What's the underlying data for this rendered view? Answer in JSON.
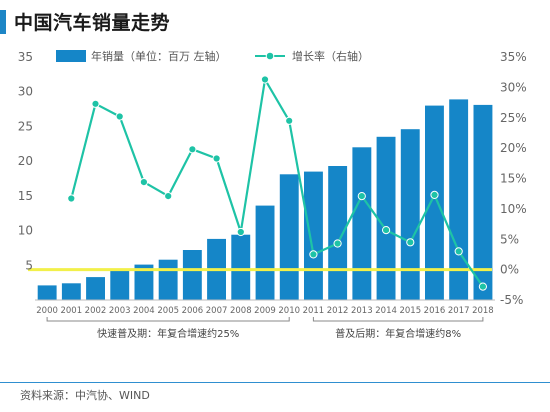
{
  "title": "中国汽车销量走势",
  "source": "资料来源：中汽协、WIND",
  "colors": {
    "bar": "#1586c8",
    "line": "#1ec3a6",
    "marker_fill": "#1ec3a6",
    "marker_stroke": "#ffffff",
    "highlight_line": "#f2f04a",
    "accent": "#1d86c6",
    "axis_text": "#666666",
    "bracket": "#888888"
  },
  "phases": [
    {
      "label": "快速普及期：年复合增速约25%",
      "from": "2000",
      "to": "2010"
    },
    {
      "label": "普及后期：年复合增速约8%",
      "from": "2011",
      "to": "2018"
    }
  ],
  "chart_data": {
    "type": "bar",
    "title": "中国汽车销量走势",
    "categories": [
      "2000",
      "2001",
      "2002",
      "2003",
      "2004",
      "2005",
      "2006",
      "2007",
      "2008",
      "2009",
      "2010",
      "2011",
      "2012",
      "2013",
      "2014",
      "2015",
      "2016",
      "2017",
      "2018"
    ],
    "series": [
      {
        "name": "年销量（单位：百万  左轴）",
        "type": "bar",
        "axis": "left",
        "values": [
          2.1,
          2.4,
          3.3,
          4.4,
          5.1,
          5.8,
          7.2,
          8.8,
          9.4,
          13.6,
          18.1,
          18.5,
          19.3,
          22.0,
          23.5,
          24.6,
          28.0,
          28.9,
          28.1
        ]
      },
      {
        "name": "增长率（右轴）",
        "type": "line",
        "axis": "right",
        "values": [
          null,
          11.7,
          27.3,
          25.2,
          14.4,
          12.1,
          19.8,
          18.3,
          6.2,
          31.3,
          24.5,
          2.5,
          4.3,
          12.1,
          6.5,
          4.5,
          12.3,
          3.0,
          -2.8
        ]
      }
    ],
    "ylim_left": [
      0,
      35
    ],
    "yticks_left": [
      5,
      10,
      15,
      20,
      25,
      30,
      35
    ],
    "ylim_right": [
      -5,
      35
    ],
    "yticks_right": [
      "35%",
      "30%",
      "25%",
      "20%",
      "15%",
      "10%",
      "5%",
      "0%",
      "-5%"
    ],
    "yticks_right_values": [
      35,
      30,
      25,
      20,
      15,
      10,
      5,
      0,
      -5
    ],
    "reference_line_right": 0,
    "legend_position": "top",
    "grid": false
  }
}
